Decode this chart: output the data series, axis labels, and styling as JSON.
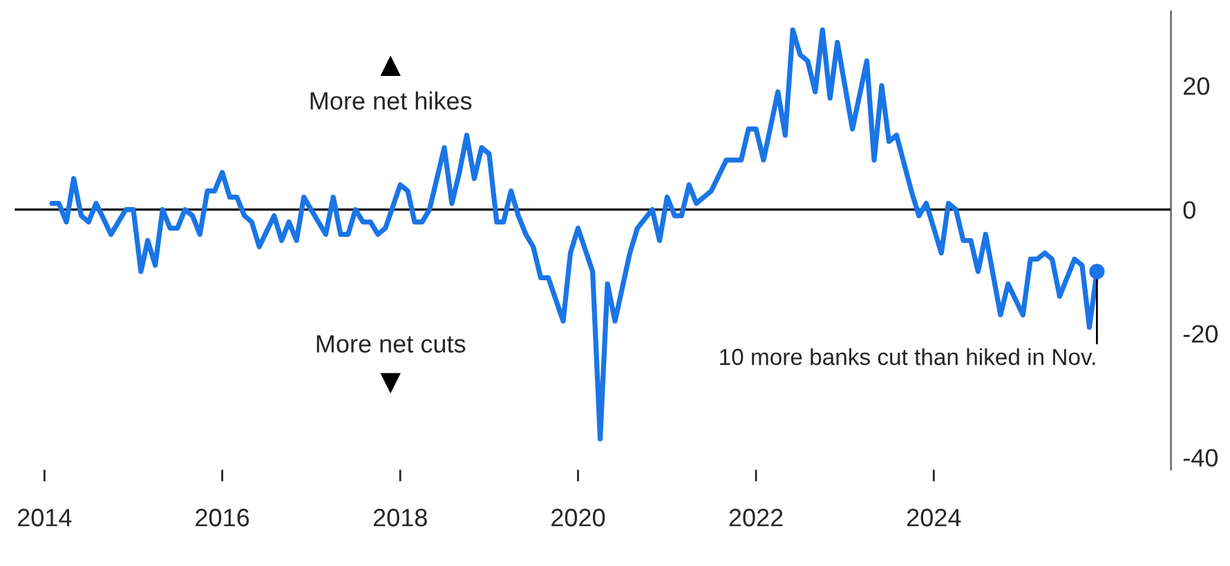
{
  "chart_data": {
    "type": "line",
    "x": [
      "2014-02",
      "2014-03",
      "2014-04",
      "2014-05",
      "2014-06",
      "2014-07",
      "2014-08",
      "2014-10",
      "2014-12",
      "2015-01",
      "2015-02",
      "2015-03",
      "2015-04",
      "2015-05",
      "2015-06",
      "2015-07",
      "2015-08",
      "2015-09",
      "2015-10",
      "2015-11",
      "2015-12",
      "2016-01",
      "2016-02",
      "2016-03",
      "2016-04",
      "2016-05",
      "2016-06",
      "2016-08",
      "2016-09",
      "2016-10",
      "2016-11",
      "2016-12",
      "2017-03",
      "2017-04",
      "2017-05",
      "2017-06",
      "2017-07",
      "2017-08",
      "2017-09",
      "2017-10",
      "2017-11",
      "2018-01",
      "2018-02",
      "2018-03",
      "2018-04",
      "2018-05",
      "2018-07",
      "2018-08",
      "2018-09",
      "2018-10",
      "2018-11",
      "2018-12",
      "2019-01",
      "2019-02",
      "2019-03",
      "2019-04",
      "2019-05",
      "2019-06",
      "2019-07",
      "2019-08",
      "2019-09",
      "2019-11",
      "2019-12",
      "2020-01",
      "2020-03",
      "2020-04",
      "2020-05",
      "2020-06",
      "2020-08",
      "2020-09",
      "2020-11",
      "2020-12",
      "2021-01",
      "2021-02",
      "2021-03",
      "2021-04",
      "2021-05",
      "2021-07",
      "2021-09",
      "2021-11",
      "2021-12",
      "2022-01",
      "2022-02",
      "2022-04",
      "2022-05",
      "2022-06",
      "2022-07",
      "2022-08",
      "2022-09",
      "2022-10",
      "2022-11",
      "2022-12",
      "2023-02",
      "2023-04",
      "2023-05",
      "2023-06",
      "2023-07",
      "2023-08",
      "2023-10",
      "2023-11",
      "2023-12",
      "2024-02",
      "2024-03",
      "2024-04",
      "2024-05",
      "2024-06",
      "2024-07",
      "2024-08",
      "2024-10",
      "2024-11",
      "2025-01",
      "2025-02",
      "2025-03",
      "2025-04",
      "2025-05",
      "2025-06",
      "2025-08",
      "2025-09",
      "2025-10",
      "2025-11"
    ],
    "series": [
      {
        "color": "#1a75e6",
        "values": [
          1,
          1,
          -2,
          5,
          -1,
          -2,
          1,
          -4,
          0,
          0,
          -10,
          -5,
          -9,
          0,
          -3,
          -3,
          0,
          -1,
          -4,
          3,
          3,
          6,
          2,
          2,
          -1,
          -2,
          -6,
          -1,
          -5,
          -2,
          -5,
          2,
          -4,
          2,
          -4,
          -4,
          0,
          -2,
          -2,
          -4,
          -3,
          4,
          3,
          -2,
          -2,
          0,
          10,
          1,
          6,
          12,
          5,
          10,
          9,
          -2,
          -2,
          3,
          -1,
          -4,
          -6,
          -11,
          -11,
          -18,
          -7,
          -3,
          -10,
          -37,
          -12,
          -18,
          -7,
          -3,
          0,
          -5,
          2,
          -1,
          -1,
          4,
          1,
          3,
          8,
          8,
          13,
          13,
          8,
          19,
          12,
          29,
          25,
          24,
          19,
          29,
          18,
          27,
          13,
          24,
          8,
          20,
          11,
          12,
          3,
          -1,
          1,
          -7,
          1,
          0,
          -5,
          -5,
          -10,
          -4,
          -17,
          -12,
          -17,
          -8,
          -8,
          -7,
          -8,
          -14,
          -8,
          -9,
          -19,
          -10
        ]
      }
    ],
    "xlim": [
      "2013-09",
      "2026-09"
    ],
    "xticks": [
      "2014",
      "2016",
      "2018",
      "2020",
      "2022",
      "2024"
    ],
    "ylim": [
      -42,
      32
    ],
    "yticks": [
      20,
      0,
      -20,
      -40
    ],
    "ref_lines": [
      {
        "axis": "y",
        "value": 0,
        "color": "#000000"
      }
    ],
    "annotations": [
      "More net hikes",
      "More net cuts",
      {
        "text": "10 more banks cut than hiked in Nov.",
        "x": "2025-11",
        "y": -10
      }
    ],
    "marker": "none",
    "line_style": "solid",
    "grid": false,
    "legend": false
  }
}
